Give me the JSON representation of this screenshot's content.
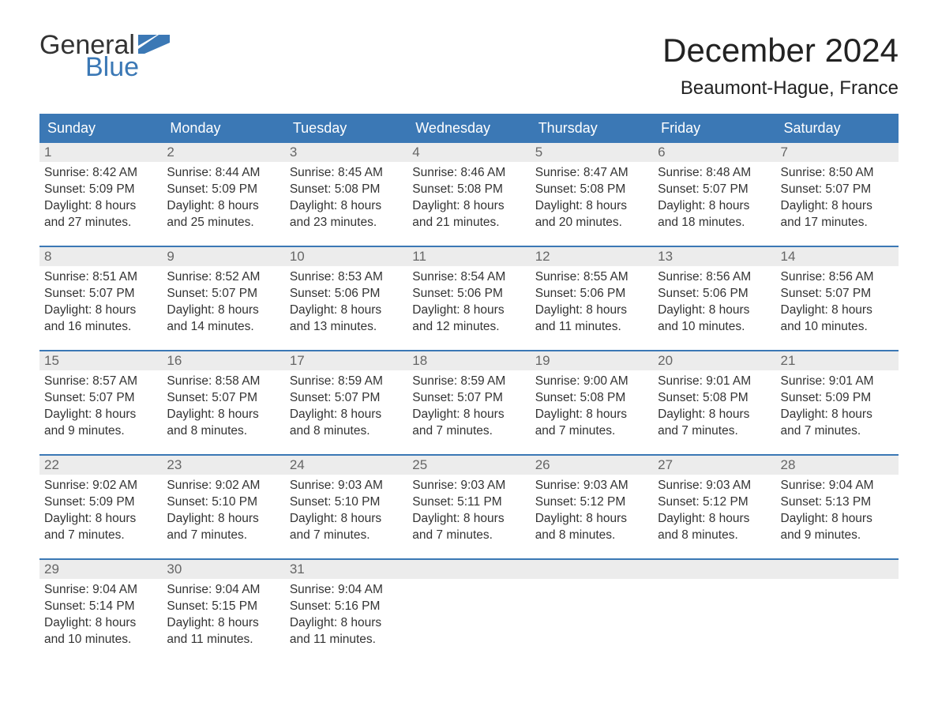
{
  "logo": {
    "text1": "General",
    "text2": "Blue",
    "flag_color": "#3b78b5"
  },
  "title": "December 2024",
  "location": "Beaumont-Hague, France",
  "colors": {
    "header_bg": "#3b78b5",
    "header_text": "#ffffff",
    "daynum_bg": "#ececec",
    "daynum_text": "#666666",
    "body_text": "#333333",
    "week_border": "#3b78b5"
  },
  "day_headers": [
    "Sunday",
    "Monday",
    "Tuesday",
    "Wednesday",
    "Thursday",
    "Friday",
    "Saturday"
  ],
  "weeks": [
    [
      {
        "n": "1",
        "sr": "Sunrise: 8:42 AM",
        "ss": "Sunset: 5:09 PM",
        "d1": "Daylight: 8 hours",
        "d2": "and 27 minutes."
      },
      {
        "n": "2",
        "sr": "Sunrise: 8:44 AM",
        "ss": "Sunset: 5:09 PM",
        "d1": "Daylight: 8 hours",
        "d2": "and 25 minutes."
      },
      {
        "n": "3",
        "sr": "Sunrise: 8:45 AM",
        "ss": "Sunset: 5:08 PM",
        "d1": "Daylight: 8 hours",
        "d2": "and 23 minutes."
      },
      {
        "n": "4",
        "sr": "Sunrise: 8:46 AM",
        "ss": "Sunset: 5:08 PM",
        "d1": "Daylight: 8 hours",
        "d2": "and 21 minutes."
      },
      {
        "n": "5",
        "sr": "Sunrise: 8:47 AM",
        "ss": "Sunset: 5:08 PM",
        "d1": "Daylight: 8 hours",
        "d2": "and 20 minutes."
      },
      {
        "n": "6",
        "sr": "Sunrise: 8:48 AM",
        "ss": "Sunset: 5:07 PM",
        "d1": "Daylight: 8 hours",
        "d2": "and 18 minutes."
      },
      {
        "n": "7",
        "sr": "Sunrise: 8:50 AM",
        "ss": "Sunset: 5:07 PM",
        "d1": "Daylight: 8 hours",
        "d2": "and 17 minutes."
      }
    ],
    [
      {
        "n": "8",
        "sr": "Sunrise: 8:51 AM",
        "ss": "Sunset: 5:07 PM",
        "d1": "Daylight: 8 hours",
        "d2": "and 16 minutes."
      },
      {
        "n": "9",
        "sr": "Sunrise: 8:52 AM",
        "ss": "Sunset: 5:07 PM",
        "d1": "Daylight: 8 hours",
        "d2": "and 14 minutes."
      },
      {
        "n": "10",
        "sr": "Sunrise: 8:53 AM",
        "ss": "Sunset: 5:06 PM",
        "d1": "Daylight: 8 hours",
        "d2": "and 13 minutes."
      },
      {
        "n": "11",
        "sr": "Sunrise: 8:54 AM",
        "ss": "Sunset: 5:06 PM",
        "d1": "Daylight: 8 hours",
        "d2": "and 12 minutes."
      },
      {
        "n": "12",
        "sr": "Sunrise: 8:55 AM",
        "ss": "Sunset: 5:06 PM",
        "d1": "Daylight: 8 hours",
        "d2": "and 11 minutes."
      },
      {
        "n": "13",
        "sr": "Sunrise: 8:56 AM",
        "ss": "Sunset: 5:06 PM",
        "d1": "Daylight: 8 hours",
        "d2": "and 10 minutes."
      },
      {
        "n": "14",
        "sr": "Sunrise: 8:56 AM",
        "ss": "Sunset: 5:07 PM",
        "d1": "Daylight: 8 hours",
        "d2": "and 10 minutes."
      }
    ],
    [
      {
        "n": "15",
        "sr": "Sunrise: 8:57 AM",
        "ss": "Sunset: 5:07 PM",
        "d1": "Daylight: 8 hours",
        "d2": "and 9 minutes."
      },
      {
        "n": "16",
        "sr": "Sunrise: 8:58 AM",
        "ss": "Sunset: 5:07 PM",
        "d1": "Daylight: 8 hours",
        "d2": "and 8 minutes."
      },
      {
        "n": "17",
        "sr": "Sunrise: 8:59 AM",
        "ss": "Sunset: 5:07 PM",
        "d1": "Daylight: 8 hours",
        "d2": "and 8 minutes."
      },
      {
        "n": "18",
        "sr": "Sunrise: 8:59 AM",
        "ss": "Sunset: 5:07 PM",
        "d1": "Daylight: 8 hours",
        "d2": "and 7 minutes."
      },
      {
        "n": "19",
        "sr": "Sunrise: 9:00 AM",
        "ss": "Sunset: 5:08 PM",
        "d1": "Daylight: 8 hours",
        "d2": "and 7 minutes."
      },
      {
        "n": "20",
        "sr": "Sunrise: 9:01 AM",
        "ss": "Sunset: 5:08 PM",
        "d1": "Daylight: 8 hours",
        "d2": "and 7 minutes."
      },
      {
        "n": "21",
        "sr": "Sunrise: 9:01 AM",
        "ss": "Sunset: 5:09 PM",
        "d1": "Daylight: 8 hours",
        "d2": "and 7 minutes."
      }
    ],
    [
      {
        "n": "22",
        "sr": "Sunrise: 9:02 AM",
        "ss": "Sunset: 5:09 PM",
        "d1": "Daylight: 8 hours",
        "d2": "and 7 minutes."
      },
      {
        "n": "23",
        "sr": "Sunrise: 9:02 AM",
        "ss": "Sunset: 5:10 PM",
        "d1": "Daylight: 8 hours",
        "d2": "and 7 minutes."
      },
      {
        "n": "24",
        "sr": "Sunrise: 9:03 AM",
        "ss": "Sunset: 5:10 PM",
        "d1": "Daylight: 8 hours",
        "d2": "and 7 minutes."
      },
      {
        "n": "25",
        "sr": "Sunrise: 9:03 AM",
        "ss": "Sunset: 5:11 PM",
        "d1": "Daylight: 8 hours",
        "d2": "and 7 minutes."
      },
      {
        "n": "26",
        "sr": "Sunrise: 9:03 AM",
        "ss": "Sunset: 5:12 PM",
        "d1": "Daylight: 8 hours",
        "d2": "and 8 minutes."
      },
      {
        "n": "27",
        "sr": "Sunrise: 9:03 AM",
        "ss": "Sunset: 5:12 PM",
        "d1": "Daylight: 8 hours",
        "d2": "and 8 minutes."
      },
      {
        "n": "28",
        "sr": "Sunrise: 9:04 AM",
        "ss": "Sunset: 5:13 PM",
        "d1": "Daylight: 8 hours",
        "d2": "and 9 minutes."
      }
    ],
    [
      {
        "n": "29",
        "sr": "Sunrise: 9:04 AM",
        "ss": "Sunset: 5:14 PM",
        "d1": "Daylight: 8 hours",
        "d2": "and 10 minutes."
      },
      {
        "n": "30",
        "sr": "Sunrise: 9:04 AM",
        "ss": "Sunset: 5:15 PM",
        "d1": "Daylight: 8 hours",
        "d2": "and 11 minutes."
      },
      {
        "n": "31",
        "sr": "Sunrise: 9:04 AM",
        "ss": "Sunset: 5:16 PM",
        "d1": "Daylight: 8 hours",
        "d2": "and 11 minutes."
      },
      {
        "n": "",
        "sr": "",
        "ss": "",
        "d1": "",
        "d2": ""
      },
      {
        "n": "",
        "sr": "",
        "ss": "",
        "d1": "",
        "d2": ""
      },
      {
        "n": "",
        "sr": "",
        "ss": "",
        "d1": "",
        "d2": ""
      },
      {
        "n": "",
        "sr": "",
        "ss": "",
        "d1": "",
        "d2": ""
      }
    ]
  ]
}
